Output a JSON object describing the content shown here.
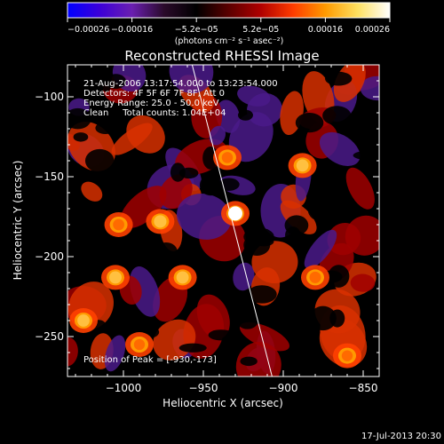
{
  "chart_data": {
    "type": "heatmap",
    "title": "Reconstructed RHESSI Image",
    "xlabel": "Heliocentric X (arcsec)",
    "ylabel": "Heliocentric Y (arcsec)",
    "xlim": [
      -1035,
      -840
    ],
    "ylim": [
      -275,
      -80
    ],
    "x_ticks": [
      {
        "value": -1000,
        "label": "−1000"
      },
      {
        "value": -950,
        "label": "−950"
      },
      {
        "value": -900,
        "label": "−900"
      },
      {
        "value": -850,
        "label": "−850"
      }
    ],
    "y_ticks": [
      {
        "value": -100,
        "label": "−100"
      },
      {
        "value": -150,
        "label": "−150"
      },
      {
        "value": -200,
        "label": "−200"
      },
      {
        "value": -250,
        "label": "−250"
      }
    ],
    "colorbar": {
      "min": -0.00026,
      "max": 0.00026,
      "tick_labels": [
        "−0.00026",
        "−0.00016",
        "−5.2e−05",
        "5.2e−05",
        "0.00016",
        "0.00026"
      ],
      "unit_label": "(photons cm⁻² s⁻¹ asec⁻²)",
      "colors": [
        "#0000ff",
        "#3c00d8",
        "#6a1fb0",
        "#2a0a2a",
        "#000000",
        "#5a0000",
        "#b00000",
        "#ff3c00",
        "#ff9a00",
        "#ffe060",
        "#ffffff"
      ]
    },
    "peak": {
      "x": -930,
      "y": -173
    },
    "limb_line": [
      {
        "x": -957,
        "y": -80
      },
      {
        "x": -907,
        "y": -275
      }
    ],
    "bright_sources": [
      {
        "x": -930,
        "y": -173,
        "value": 0.00026
      },
      {
        "x": -977,
        "y": -178,
        "value": 0.00018
      },
      {
        "x": -963,
        "y": -213,
        "value": 0.00017
      },
      {
        "x": -1005,
        "y": -213,
        "value": 0.00017
      },
      {
        "x": -1025,
        "y": -240,
        "value": 0.00016
      },
      {
        "x": -888,
        "y": -143,
        "value": 0.00016
      },
      {
        "x": -880,
        "y": -213,
        "value": 0.00013
      },
      {
        "x": -1003,
        "y": -180,
        "value": 0.00012
      },
      {
        "x": -935,
        "y": -138,
        "value": 0.00011
      },
      {
        "x": -990,
        "y": -255,
        "value": 0.0001
      },
      {
        "x": -860,
        "y": -262,
        "value": 0.0001
      }
    ],
    "info": {
      "time_range": "21-Aug-2006 13:17:54.000 to 13:23:54.000",
      "detectors": "Detectors: 4F 5F 6F 7F 8F, Att 0",
      "energy": "Energy Range: 25.0 - 50.0 keV",
      "method": "Clean     Total counts: 1.04E+04",
      "peak_text": "Position of Peak = [-930,-173]"
    },
    "footer_timestamp": "17-Jul-2013 20:30"
  }
}
